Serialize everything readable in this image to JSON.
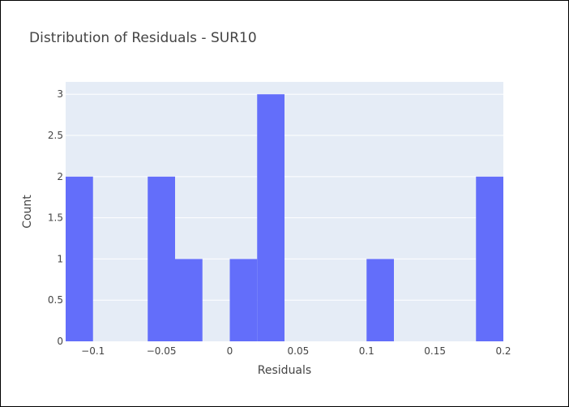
{
  "chart_data": {
    "type": "bar",
    "title": "Distribution of Residuals - SUR10",
    "xlabel": "Residuals",
    "ylabel": "Count",
    "xlim": [
      -0.12,
      0.2
    ],
    "ylim": [
      0,
      3.15
    ],
    "x_ticks": [
      -0.1,
      -0.05,
      0,
      0.05,
      0.1,
      0.15,
      0.2
    ],
    "x_tick_labels": [
      "−0.1",
      "−0.05",
      "0",
      "0.05",
      "0.1",
      "0.15",
      "0.2"
    ],
    "y_ticks": [
      0,
      0.5,
      1,
      1.5,
      2,
      2.5,
      3
    ],
    "y_tick_labels": [
      "0",
      "0.5",
      "1",
      "1.5",
      "2",
      "2.5",
      "3"
    ],
    "bin_width": 0.02,
    "bins": [
      {
        "x0": -0.12,
        "x1": -0.1,
        "count": 2
      },
      {
        "x0": -0.06,
        "x1": -0.04,
        "count": 2
      },
      {
        "x0": -0.04,
        "x1": -0.02,
        "count": 1
      },
      {
        "x0": 0.0,
        "x1": 0.02,
        "count": 1
      },
      {
        "x0": 0.02,
        "x1": 0.04,
        "count": 3
      },
      {
        "x0": 0.1,
        "x1": 0.12,
        "count": 1
      },
      {
        "x0": 0.18,
        "x1": 0.2,
        "count": 2
      }
    ],
    "colors": {
      "bar": "#636efa",
      "plot_bg": "#e5ecf6",
      "grid": "#ffffff",
      "text": "#444444"
    },
    "grid": true
  }
}
